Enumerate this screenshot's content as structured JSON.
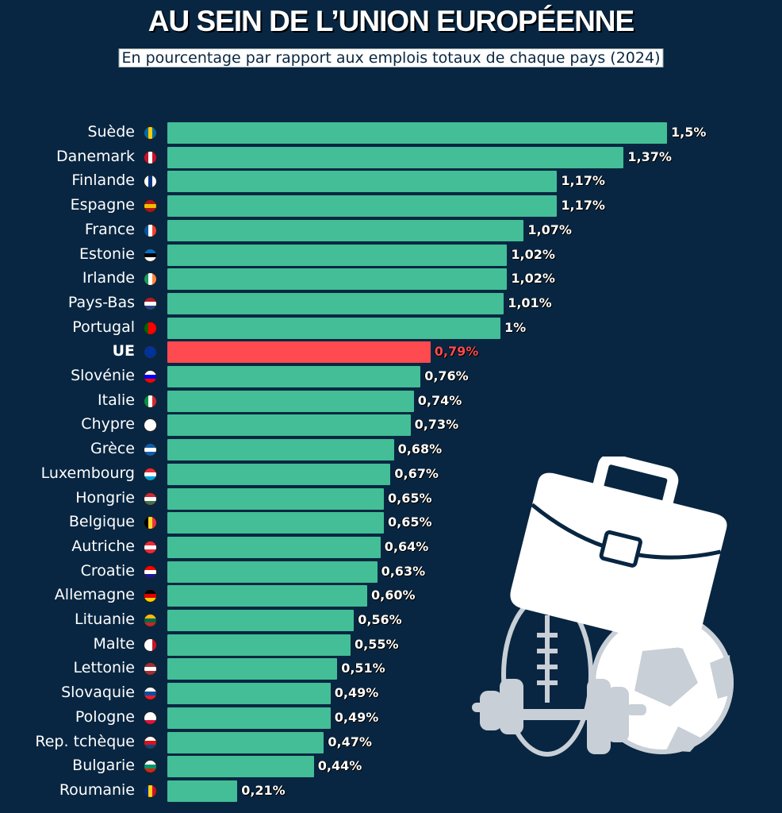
{
  "title": "AU SEIN DE L’UNION EUROPÉENNE",
  "subtitle": "En pourcentage par rapport aux emplois totaux de chaque pays (2024)",
  "colors": {
    "background": "#082641",
    "bar": "#43be96",
    "highlight": "#ff4a50"
  },
  "chart_data": {
    "type": "bar",
    "orientation": "horizontal",
    "xlim": [
      0,
      1.5
    ],
    "grid": false,
    "categories": [
      "Suède",
      "Danemark",
      "Finlande",
      "Espagne",
      "France",
      "Estonie",
      "Irlande",
      "Pays-Bas",
      "Portugal",
      "UE",
      "Slovénie",
      "Italie",
      "Chypre",
      "Grèce",
      "Luxembourg",
      "Hongrie",
      "Belgique",
      "Autriche",
      "Croatie",
      "Allemagne",
      "Lituanie",
      "Malte",
      "Lettonie",
      "Slovaquie",
      "Pologne",
      "Rep. tchèque",
      "Bulgarie",
      "Roumanie"
    ],
    "values": [
      1.5,
      1.37,
      1.17,
      1.17,
      1.07,
      1.02,
      1.02,
      1.01,
      1,
      0.79,
      0.76,
      0.74,
      0.73,
      0.68,
      0.67,
      0.65,
      0.65,
      0.64,
      0.63,
      0.6,
      0.56,
      0.55,
      0.51,
      0.49,
      0.49,
      0.47,
      0.44,
      0.21
    ],
    "labels": [
      "1,5%",
      "1,37%",
      "1,17%",
      "1,17%",
      "1,07%",
      "1,02%",
      "1,02%",
      "1,01%",
      "1%",
      "0,79%",
      "0,76%",
      "0,74%",
      "0,73%",
      "0,68%",
      "0,67%",
      "0,65%",
      "0,65%",
      "0,64%",
      "0,63%",
      "0,60%",
      "0,56%",
      "0,55%",
      "0,51%",
      "0,49%",
      "0,49%",
      "0,47%",
      "0,44%",
      "0,21%"
    ],
    "highlight": "UE",
    "flags": [
      [
        "v",
        "#006aa7",
        "#fecc00",
        "#006aa7"
      ],
      [
        "v",
        "#c8102e",
        "#fff",
        "#c8102e"
      ],
      [
        "v",
        "#fff",
        "#003580",
        "#fff"
      ],
      [
        "h",
        "#aa151b",
        "#f1bf00",
        "#aa151b"
      ],
      [
        "v",
        "#0055a4",
        "#fff",
        "#ef4135"
      ],
      [
        "h",
        "#0072ce",
        "#000",
        "#fff"
      ],
      [
        "v",
        "#169b62",
        "#fff",
        "#ff883e"
      ],
      [
        "h",
        "#ae1c28",
        "#fff",
        "#21468b"
      ],
      [
        "v",
        "#006600",
        "#ff0000",
        "#ff0000"
      ],
      [
        "h",
        "#003399",
        "#003399",
        "#003399"
      ],
      [
        "h",
        "#fff",
        "#0000ff",
        "#ff0000"
      ],
      [
        "v",
        "#009246",
        "#fff",
        "#ce2b37"
      ],
      [
        "h",
        "#fff",
        "#fff",
        "#fff"
      ],
      [
        "h",
        "#0d5eaf",
        "#fff",
        "#0d5eaf"
      ],
      [
        "h",
        "#ed2939",
        "#fff",
        "#00a1de"
      ],
      [
        "h",
        "#ce2939",
        "#fff",
        "#477050"
      ],
      [
        "v",
        "#000",
        "#fdda24",
        "#ef3340"
      ],
      [
        "h",
        "#ed2939",
        "#fff",
        "#ed2939"
      ],
      [
        "h",
        "#ff0000",
        "#fff",
        "#171796"
      ],
      [
        "h",
        "#000",
        "#dd0000",
        "#ffce00"
      ],
      [
        "h",
        "#fdb913",
        "#006a44",
        "#c1272d"
      ],
      [
        "v",
        "#fff",
        "#fff",
        "#cf142b"
      ],
      [
        "h",
        "#9e3039",
        "#fff",
        "#9e3039"
      ],
      [
        "h",
        "#fff",
        "#0b4ea2",
        "#ee1c25"
      ],
      [
        "h",
        "#fff",
        "#fff",
        "#dc143c"
      ],
      [
        "h",
        "#fff",
        "#d7141a",
        "#11457e"
      ],
      [
        "h",
        "#fff",
        "#00966e",
        "#d62612"
      ],
      [
        "v",
        "#002b7f",
        "#fcd116",
        "#ce1126"
      ]
    ]
  }
}
